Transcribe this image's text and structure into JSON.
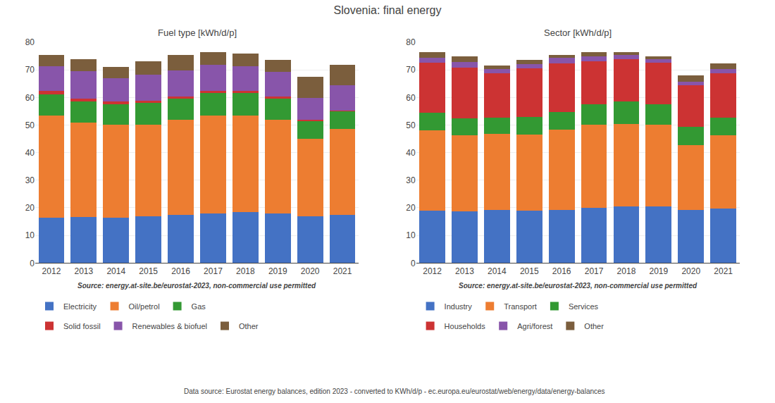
{
  "title": "Slovenia: final energy",
  "annotations": [
    "Data source: Eurostat energy balances, edition 2023 - converted to KWh/d/p - ec.europa.eu/eurostat/web/energy/data/energy-balances"
  ],
  "chart_data": [
    {
      "type": "bar",
      "stacked": true,
      "title": "Fuel type [kWh/d/p]",
      "annotations": [
        "Source: energy.at-site.be/eurostat-2023, non-commercial use permitted"
      ],
      "categories": [
        "2012",
        "2013",
        "2014",
        "2015",
        "2016",
        "2017",
        "2018",
        "2019",
        "2020",
        "2021"
      ],
      "series": [
        {
          "name": "Electricity",
          "color": "#4472c4",
          "values": [
            16.5,
            16.7,
            16.5,
            17.0,
            17.5,
            18.0,
            18.5,
            18.0,
            17.0,
            17.5
          ]
        },
        {
          "name": "Oil/petrol",
          "color": "#ed7d31",
          "values": [
            37.0,
            34.3,
            33.5,
            33.0,
            34.5,
            35.5,
            35.0,
            34.0,
            28.0,
            31.0
          ]
        },
        {
          "name": "Gas",
          "color": "#339933",
          "values": [
            7.5,
            7.5,
            7.5,
            8.0,
            7.5,
            8.0,
            8.0,
            7.5,
            6.5,
            6.5
          ]
        },
        {
          "name": "Solid fossil",
          "color": "#cc3333",
          "values": [
            1.3,
            1.0,
            1.0,
            0.8,
            0.8,
            0.8,
            0.8,
            0.8,
            0.3,
            0.3
          ]
        },
        {
          "name": "Renewables & biofuel",
          "color": "#8855aa",
          "values": [
            9.0,
            10.0,
            8.5,
            9.5,
            9.5,
            9.5,
            9.0,
            9.0,
            8.0,
            9.0
          ]
        },
        {
          "name": "Other",
          "color": "#7b5e3d",
          "values": [
            4.2,
            4.5,
            4.0,
            4.7,
            5.7,
            4.7,
            4.7,
            4.2,
            7.7,
            7.5
          ]
        }
      ],
      "ylim": [
        0,
        80
      ],
      "yticks": [
        0,
        10,
        20,
        30,
        40,
        50,
        60,
        70,
        80
      ],
      "grid": true,
      "legend": "bottom"
    },
    {
      "type": "bar",
      "stacked": true,
      "title": "Sector [kWh/d/p]",
      "annotations": [
        "Source: energy.at-site.be/eurostat-2023, non-commercial use permitted"
      ],
      "categories": [
        "2012",
        "2013",
        "2014",
        "2015",
        "2016",
        "2017",
        "2018",
        "2019",
        "2020",
        "2021"
      ],
      "series": [
        {
          "name": "Industry",
          "color": "#4472c4",
          "values": [
            19.0,
            18.8,
            19.3,
            19.0,
            19.3,
            20.0,
            20.5,
            20.5,
            19.3,
            19.8
          ]
        },
        {
          "name": "Transport",
          "color": "#ed7d31",
          "values": [
            29.0,
            27.5,
            27.5,
            27.5,
            29.0,
            30.0,
            30.0,
            29.5,
            23.5,
            26.5
          ]
        },
        {
          "name": "Services",
          "color": "#339933",
          "values": [
            6.5,
            6.0,
            6.0,
            6.5,
            6.5,
            7.5,
            8.0,
            7.5,
            6.5,
            6.5
          ]
        },
        {
          "name": "Households",
          "color": "#cc3333",
          "values": [
            18.0,
            18.5,
            16.0,
            17.5,
            17.5,
            15.5,
            15.5,
            15.0,
            15.0,
            16.0
          ]
        },
        {
          "name": "Agri/forest",
          "color": "#8855aa",
          "values": [
            2.0,
            2.0,
            1.5,
            1.5,
            2.0,
            2.0,
            1.5,
            1.5,
            1.5,
            1.5
          ]
        },
        {
          "name": "Other",
          "color": "#7b5e3d",
          "values": [
            2.0,
            2.2,
            1.2,
            1.5,
            1.2,
            1.5,
            1.0,
            1.0,
            2.2,
            2.0
          ]
        }
      ],
      "ylim": [
        0,
        80
      ],
      "yticks": [
        0,
        10,
        20,
        30,
        40,
        50,
        60,
        70,
        80
      ],
      "grid": true,
      "legend": "bottom"
    }
  ]
}
